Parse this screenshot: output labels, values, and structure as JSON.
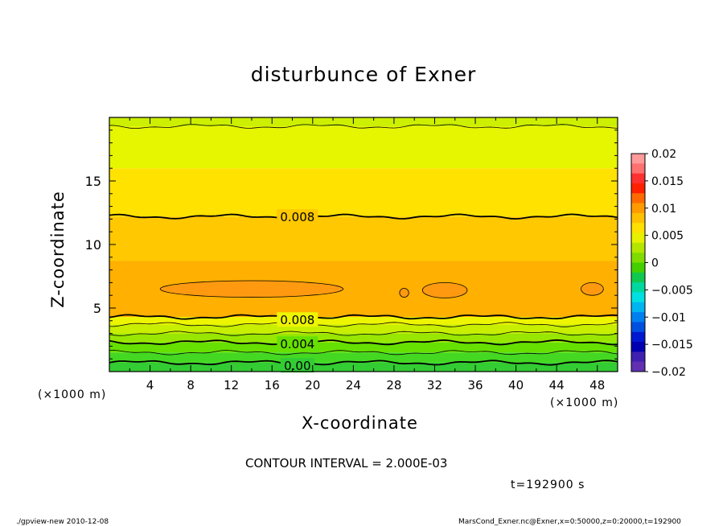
{
  "chart_data": {
    "type": "contour",
    "title": "disturbunce of Exner",
    "xlabel": "X-coordinate",
    "ylabel": "Z-coordinate",
    "x_unit_label": "(×1000 m)",
    "xlim": [
      0,
      50
    ],
    "ylim": [
      0,
      20
    ],
    "x_ticks": [
      4,
      8,
      12,
      16,
      20,
      24,
      28,
      32,
      36,
      40,
      44,
      48
    ],
    "y_ticks": [
      5,
      10,
      15
    ],
    "contour_interval_text": "CONTOUR INTERVAL = 2.000E-03",
    "contour_labels": [
      {
        "text": "0.008",
        "x": 18.5,
        "z": 12.2
      },
      {
        "text": "0.008",
        "x": 18.5,
        "z": 4.1
      },
      {
        "text": "0.004",
        "x": 18.5,
        "z": 2.2
      },
      {
        "text": "0.00",
        "x": 18.5,
        "z": 0.5
      }
    ],
    "bands": [
      {
        "z_from": 0.0,
        "z_to": 0.7,
        "color": "#33cc33"
      },
      {
        "z_from": 0.7,
        "z_to": 1.5,
        "color": "#44d822"
      },
      {
        "z_from": 1.5,
        "z_to": 2.3,
        "color": "#66e000"
      },
      {
        "z_from": 2.3,
        "z_to": 3.0,
        "color": "#99e600"
      },
      {
        "z_from": 3.0,
        "z_to": 3.7,
        "color": "#c8ee00"
      },
      {
        "z_from": 3.7,
        "z_to": 4.3,
        "color": "#eef500"
      },
      {
        "z_from": 4.3,
        "z_to": 8.7,
        "color": "#ffb000"
      },
      {
        "z_from": 8.7,
        "z_to": 12.2,
        "color": "#ffc800"
      },
      {
        "z_from": 12.2,
        "z_to": 16.0,
        "color": "#ffe200"
      },
      {
        "z_from": 16.0,
        "z_to": 19.3,
        "color": "#e6f500"
      },
      {
        "z_from": 19.3,
        "z_to": 20.0,
        "color": "#ccf000"
      }
    ],
    "contour_lines_z": [
      0.7,
      1.5,
      2.3,
      3.0,
      3.7,
      4.3,
      12.2,
      19.3
    ],
    "bold_contours_z": [
      0.7,
      2.3,
      4.3,
      12.2
    ],
    "islands": [
      {
        "cx": 14.0,
        "cz": 6.5,
        "rx": 9.0,
        "rz": 0.65,
        "color": "#ff9a10"
      },
      {
        "cx": 29.0,
        "cz": 6.2,
        "rx": 0.45,
        "rz": 0.35,
        "color": "#ff9a10"
      },
      {
        "cx": 33.0,
        "cz": 6.4,
        "rx": 2.2,
        "rz": 0.6,
        "color": "#ff9a10"
      },
      {
        "cx": 47.5,
        "cz": 6.5,
        "rx": 1.1,
        "rz": 0.5,
        "color": "#ff9a10"
      }
    ],
    "colorbar": {
      "tick_labels": [
        "0.02",
        "0.015",
        "0.01",
        "0.005",
        "0",
        "−0.005",
        "−0.01",
        "−0.015",
        "−0.02"
      ],
      "colors_top_to_bottom": [
        "#ff9a9a",
        "#ff7070",
        "#ff3030",
        "#ff2000",
        "#ff6a00",
        "#ff9a00",
        "#ffc000",
        "#ffe000",
        "#e6f000",
        "#b4e600",
        "#80dc00",
        "#44d000",
        "#10c850",
        "#00d8a0",
        "#00e0e0",
        "#00b4f0",
        "#0080f0",
        "#0050e0",
        "#0018d0",
        "#0000b0",
        "#4020b0",
        "#6030b0"
      ]
    }
  },
  "time_label": "t=192900 s",
  "footer": {
    "left": "./gpview-new   2010-12-08",
    "right": "MarsCond_Exner.nc@Exner,x=0:50000,z=0:20000,t=192900"
  }
}
